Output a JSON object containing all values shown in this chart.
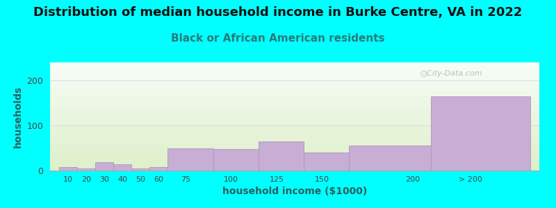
{
  "title": "Distribution of median household income in Burke Centre, VA in 2022",
  "subtitle": "Black or African American residents",
  "xlabel": "household income ($1000)",
  "ylabel": "households",
  "background_color": "#00FFFF",
  "bar_color": "#c8aed4",
  "bar_edge_color": "#b090c0",
  "values": [
    8,
    5,
    18,
    14,
    5,
    7,
    50,
    48,
    65,
    40,
    55,
    165
  ],
  "bar_lefts": [
    5,
    15,
    25,
    35,
    45,
    55,
    65,
    90,
    115,
    140,
    165,
    210
  ],
  "bar_widths": [
    10,
    10,
    10,
    10,
    10,
    10,
    25,
    25,
    25,
    25,
    45,
    55
  ],
  "xtick_positions": [
    10,
    20,
    30,
    40,
    50,
    60,
    75,
    100,
    125,
    150,
    200,
    232
  ],
  "xtick_labels": [
    "10",
    "20",
    "30",
    "40",
    "50",
    "60",
    "75",
    "100",
    "125",
    "150",
    "200",
    "> 200"
  ],
  "ylim": [
    0,
    240
  ],
  "yticks": [
    0,
    100,
    200
  ],
  "xlim": [
    0,
    270
  ],
  "title_fontsize": 13,
  "subtitle_fontsize": 11,
  "label_fontsize": 10,
  "tick_fontsize": 8,
  "title_color": "#111111",
  "subtitle_color": "#2a7a7a",
  "axis_label_color": "#2a6060",
  "tick_color": "#444444",
  "gridline_color": "#dddddd",
  "watermark": "City-Data.com"
}
